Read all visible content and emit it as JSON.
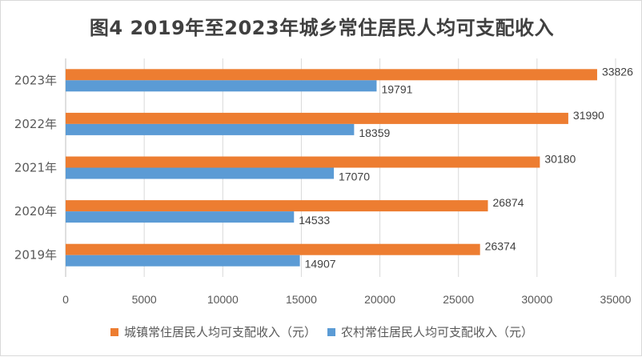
{
  "chart_data": {
    "type": "bar",
    "orientation": "horizontal",
    "title": "图4  2019年至2023年城乡常住居民人均可支配收入",
    "categories": [
      "2019年",
      "2020年",
      "2021年",
      "2022年",
      "2023年"
    ],
    "series": [
      {
        "name": "城镇常住居民人均可支配收入（元）",
        "color": "#ED7D31",
        "values": [
          26374,
          26874,
          30180,
          31990,
          33826
        ]
      },
      {
        "name": "农村常住居民人均可支配收入（元）",
        "color": "#5B9BD5",
        "values": [
          14907,
          14533,
          17070,
          18359,
          19791
        ]
      }
    ],
    "xlim": [
      0,
      35000
    ],
    "xticks": [
      0,
      5000,
      10000,
      15000,
      20000,
      25000,
      30000,
      35000
    ],
    "xtick_labels": [
      "0",
      "5000",
      "10000",
      "15000",
      "20000",
      "25000",
      "30000",
      "35000"
    ],
    "grid": "vertical",
    "legend_position": "bottom",
    "data_labels": true
  }
}
